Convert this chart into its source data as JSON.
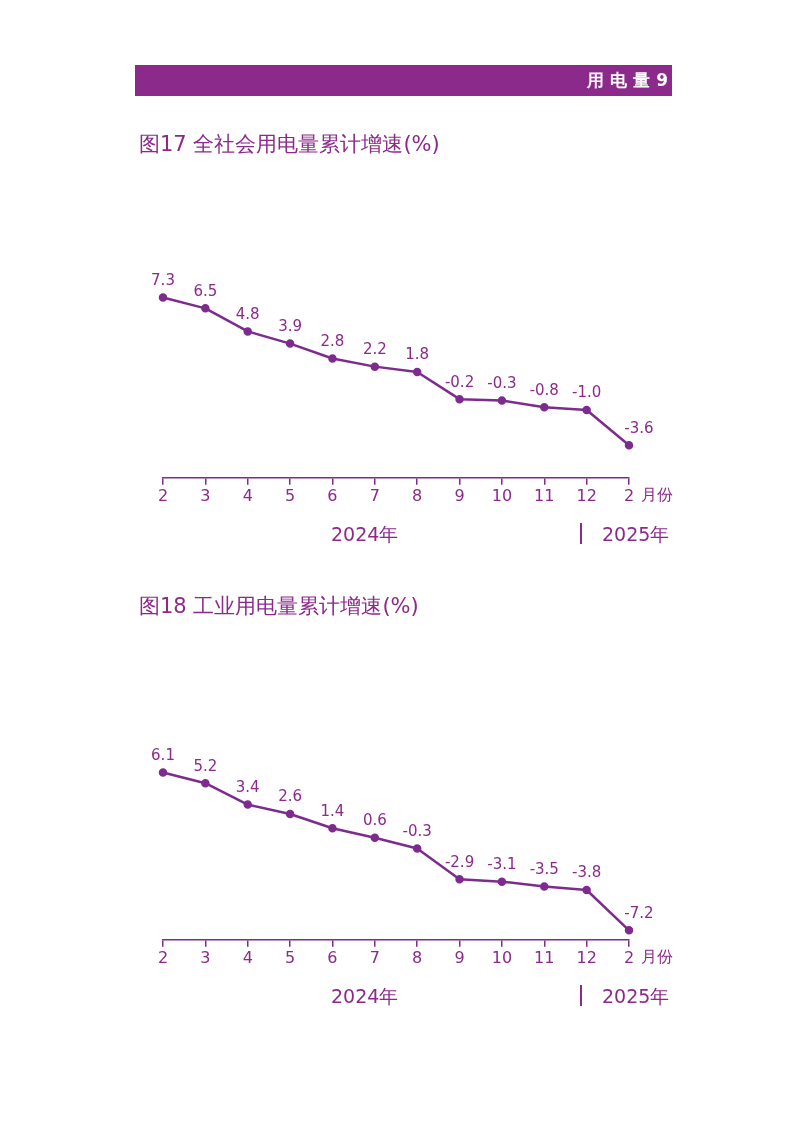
{
  "chart_data": [
    {
      "type": "other",
      "title": "用 电 量 9"
    },
    {
      "type": "line",
      "title": "图17  全社会用电量累计增速(%)",
      "xlabel": "月份",
      "categories": [
        "2",
        "3",
        "4",
        "5",
        "6",
        "7",
        "8",
        "9",
        "10",
        "11",
        "12",
        "2"
      ],
      "color": "#7e2b8e",
      "marker": "circle",
      "grid": false,
      "legend": false,
      "values": [
        7.3,
        6.5,
        4.8,
        3.9,
        2.8,
        2.2,
        1.8,
        -0.2,
        -0.3,
        -0.8,
        -1.0,
        -3.6
      ],
      "value_labels": [
        "7.3",
        "6.5",
        "4.8",
        "3.9",
        "2.8",
        "2.2",
        "1.8",
        "-0.2",
        "-0.3",
        "-0.8",
        "-1.0",
        "-3.6"
      ],
      "annotations": [
        "2024年",
        "2025年"
      ]
    },
    {
      "type": "line",
      "title": "图18  工业用电量累计增速(%)",
      "xlabel": "月份",
      "categories": [
        "2",
        "3",
        "4",
        "5",
        "6",
        "7",
        "8",
        "9",
        "10",
        "11",
        "12",
        "2"
      ],
      "color": "#7e2b8e",
      "marker": "circle",
      "grid": false,
      "legend": false,
      "values": [
        6.1,
        5.2,
        3.4,
        2.6,
        1.4,
        0.6,
        -0.3,
        -2.9,
        -3.1,
        -3.5,
        -3.8,
        -7.2
      ],
      "value_labels": [
        "6.1",
        "5.2",
        "3.4",
        "2.6",
        "1.4",
        "0.6",
        "-0.3",
        "-2.9",
        "-3.1",
        "-3.5",
        "-3.8",
        "-7.2"
      ],
      "annotations": [
        "2024年",
        "2025年"
      ]
    }
  ]
}
